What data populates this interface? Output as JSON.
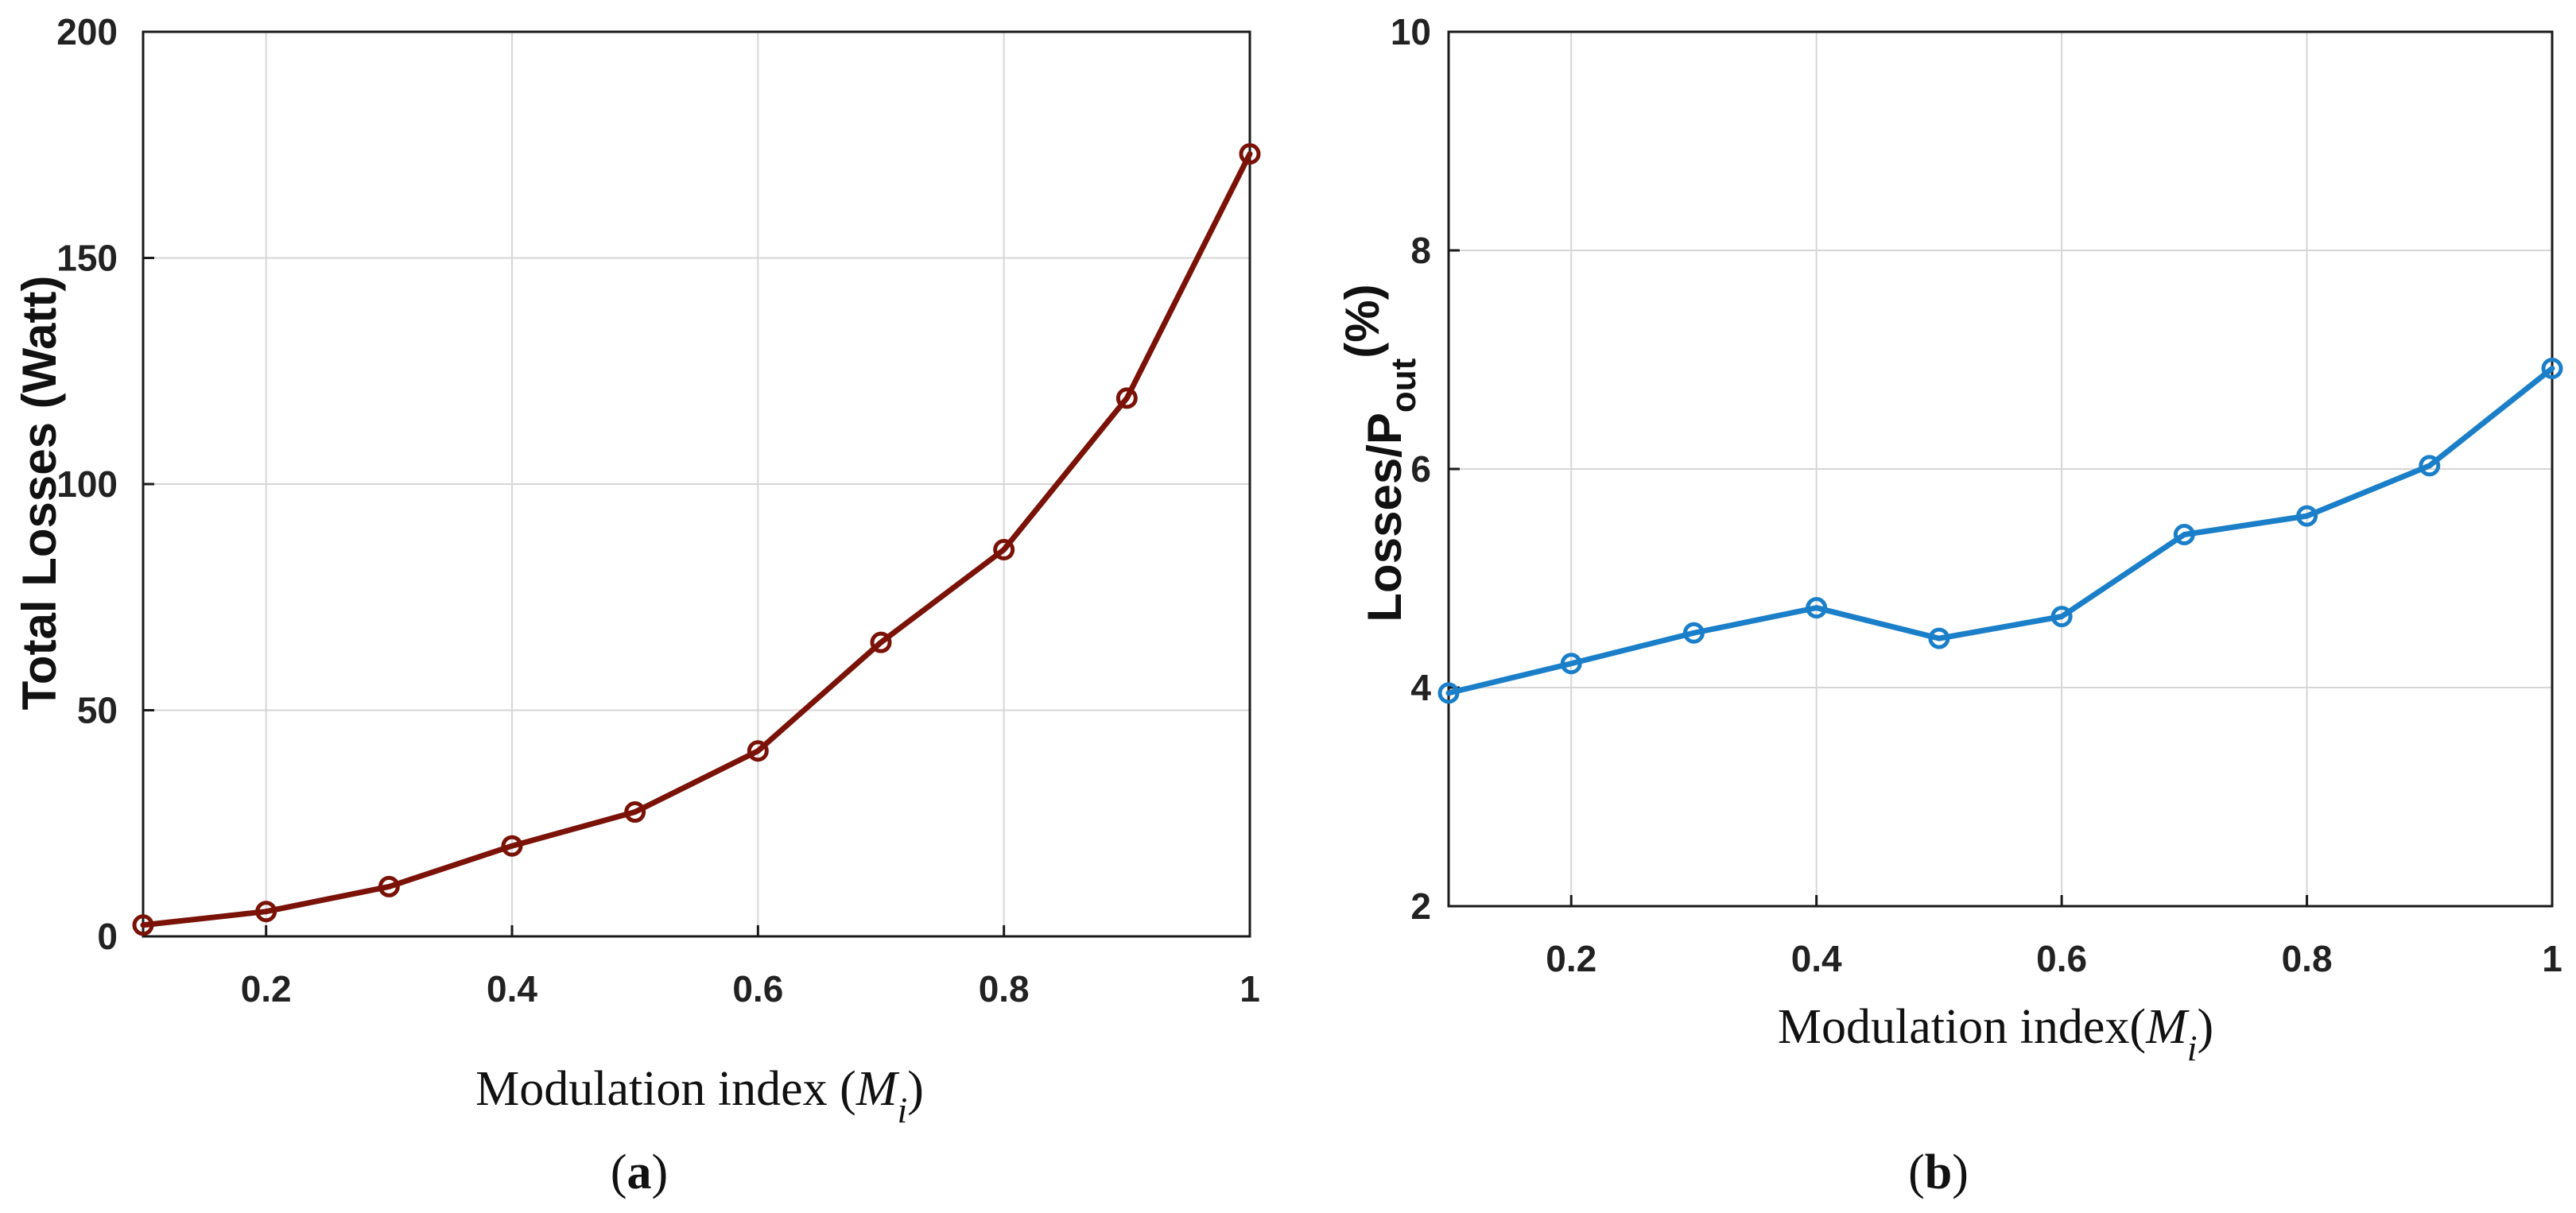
{
  "chart_data": [
    {
      "type": "line",
      "panel_label": "(a)",
      "xlabel": "Modulation index (",
      "xlabel_symbol": "M",
      "xlabel_subscript": "i",
      "xlabel_close": ")",
      "ylabel": "Total Losses (Watt)",
      "xlim": [
        0.1,
        1
      ],
      "ylim": [
        0,
        200
      ],
      "xticks": [
        0.2,
        0.4,
        0.6,
        0.8,
        1
      ],
      "xtick_labels": [
        "0.2",
        "0.4",
        "0.6",
        "0.8",
        "1"
      ],
      "yticks": [
        0,
        50,
        100,
        150,
        200
      ],
      "ytick_labels": [
        "0",
        "50",
        "100",
        "150",
        "200"
      ],
      "grid": true,
      "series": [
        {
          "name": "Total Losses",
          "color": "#7a1208",
          "marker": "circle",
          "x": [
            0.1,
            0.2,
            0.3,
            0.4,
            0.5,
            0.6,
            0.7,
            0.8,
            0.9,
            1.0
          ],
          "y": [
            2.5,
            5.5,
            11,
            20,
            27.5,
            41,
            65,
            85.5,
            119,
            173
          ]
        }
      ]
    },
    {
      "type": "line",
      "panel_label": "(b)",
      "xlabel": "Modulation index(",
      "xlabel_symbol": "M",
      "xlabel_subscript": "i",
      "xlabel_close": ")",
      "ylabel": "Losses/P",
      "ylabel_subscript": "out",
      "ylabel_suffix": "(%)",
      "xlim": [
        0.1,
        1
      ],
      "ylim": [
        2,
        10
      ],
      "xticks": [
        0.2,
        0.4,
        0.6,
        0.8,
        1
      ],
      "xtick_labels": [
        "0.2",
        "0.4",
        "0.6",
        "0.8",
        "1"
      ],
      "yticks": [
        2,
        4,
        6,
        8,
        10
      ],
      "ytick_labels": [
        "2",
        "4",
        "6",
        "8",
        "10"
      ],
      "grid": true,
      "series": [
        {
          "name": "Losses/Pout",
          "color": "#1a7fc8",
          "marker": "circle",
          "x": [
            0.1,
            0.2,
            0.3,
            0.4,
            0.5,
            0.6,
            0.7,
            0.8,
            0.9,
            1.0
          ],
          "y": [
            3.95,
            4.22,
            4.5,
            4.73,
            4.45,
            4.65,
            5.4,
            5.57,
            6.03,
            6.92
          ]
        }
      ]
    }
  ]
}
